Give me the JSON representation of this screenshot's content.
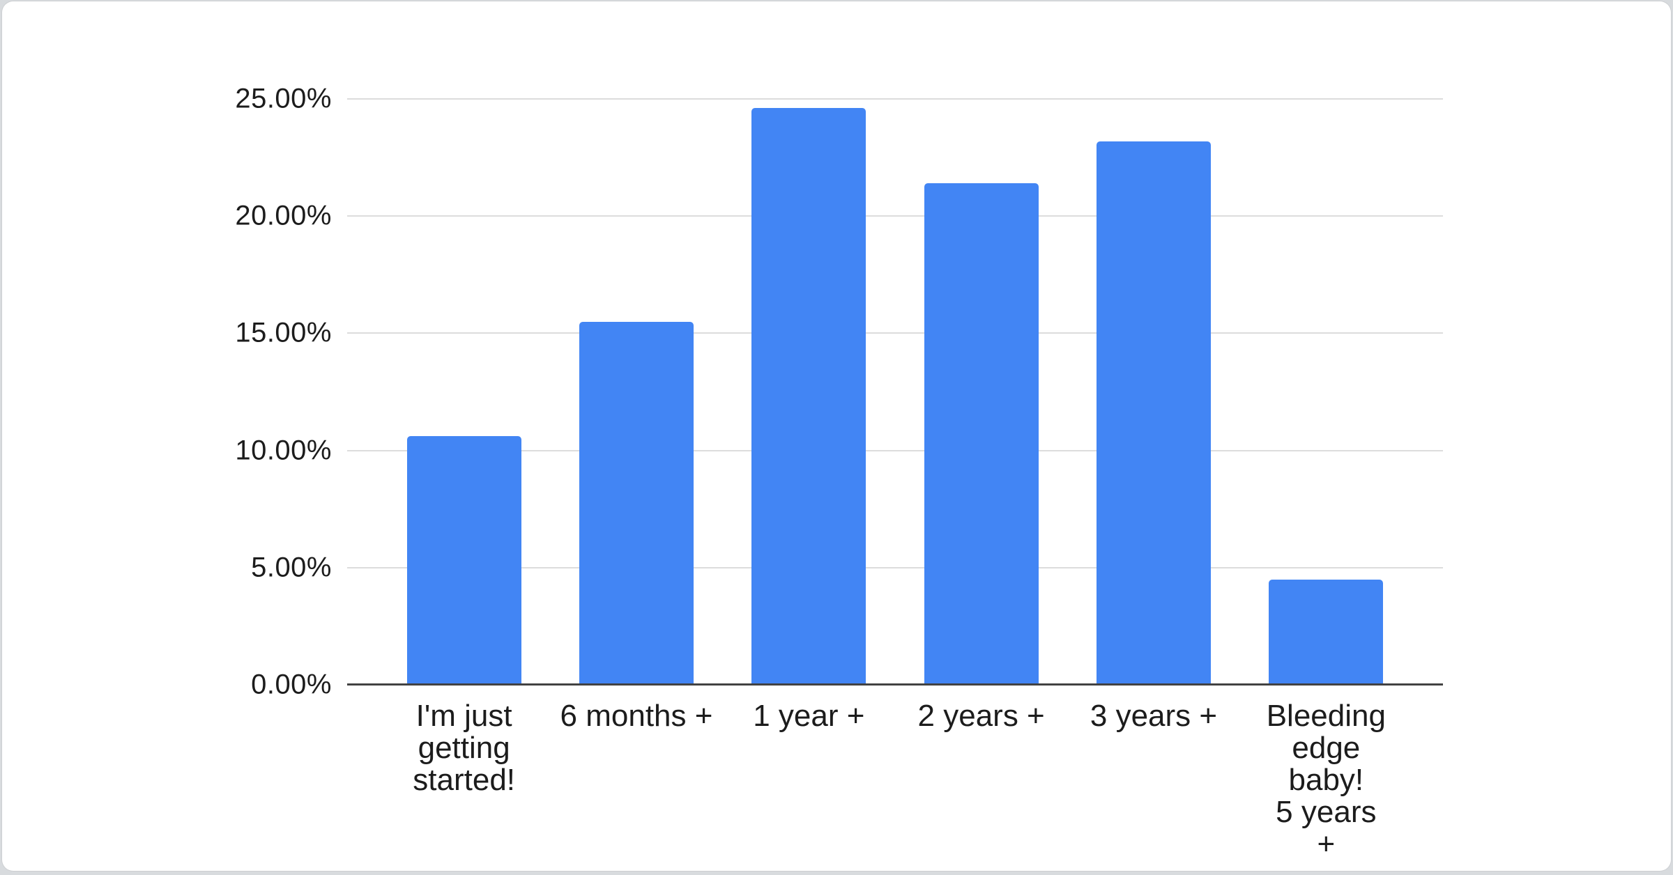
{
  "chart_data": {
    "type": "bar",
    "title": "",
    "categories": [
      "I'm just\ngetting\nstarted!",
      "6 months +",
      "1 year +",
      "2 years +",
      "3 years +",
      "Bleeding\nedge baby!\n5 years +"
    ],
    "values": [
      10.6,
      15.5,
      24.6,
      21.4,
      23.2,
      4.5
    ],
    "value_unit": "%",
    "y_ticks": [
      {
        "value": 0,
        "label": "0.00%"
      },
      {
        "value": 5,
        "label": "5.00%"
      },
      {
        "value": 10,
        "label": "10.00%"
      },
      {
        "value": 15,
        "label": "15.00%"
      },
      {
        "value": 20,
        "label": "20.00%"
      },
      {
        "value": 25,
        "label": "25.00%"
      }
    ],
    "ylim": [
      0,
      25
    ],
    "grid": true,
    "legend_position": "none",
    "colors": {
      "bar": "#4285f4",
      "gridline": "#dcdcdc",
      "axis_line": "#424242",
      "label": "#1c1c1c",
      "card_background": "#ffffff",
      "page_background": "#d8dbde"
    }
  }
}
